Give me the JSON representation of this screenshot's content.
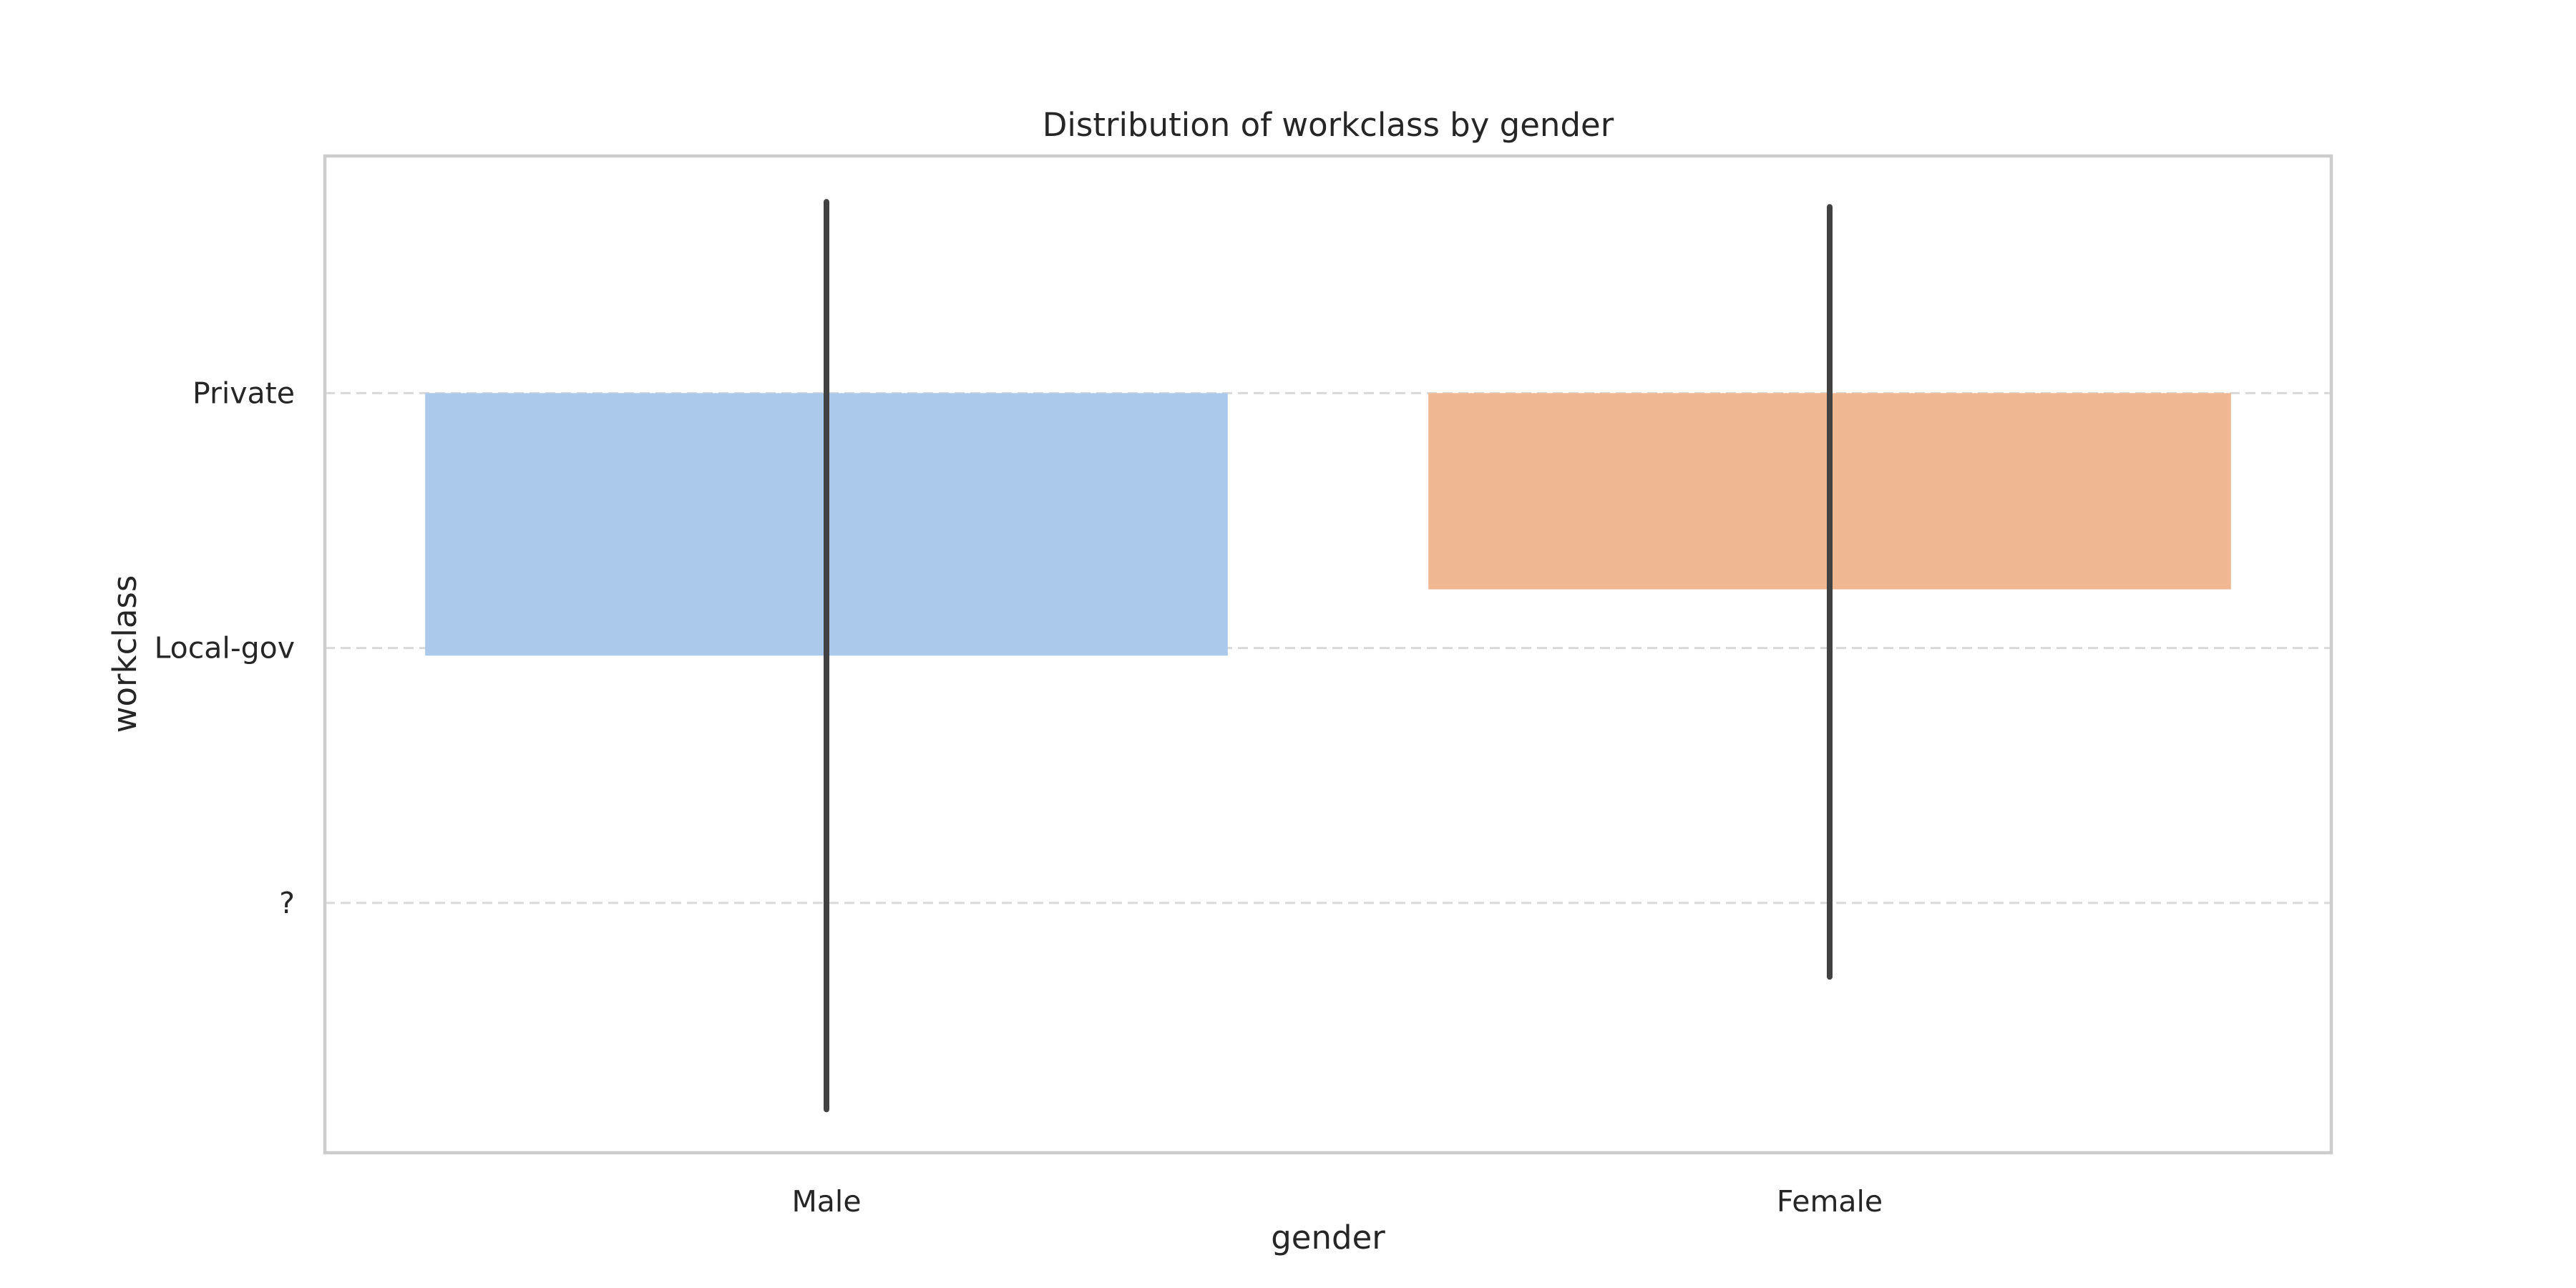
{
  "chart_data": {
    "type": "bar",
    "title": "Distribution of workclass by gender",
    "xlabel": "gender",
    "ylabel": "workclass",
    "categories": [
      "Male",
      "Female"
    ],
    "y_tick_labels": [
      "Private",
      "Local-gov",
      "?"
    ],
    "y_tick_values": [
      0,
      1,
      2
    ],
    "ylim": [
      -0.93,
      2.98
    ],
    "y_inverted": true,
    "grid": "y, dashed",
    "legend": "none",
    "values": [
      1.03,
      0.77
    ],
    "error_bars": [
      {
        "low": -0.75,
        "high": 2.81
      },
      {
        "low": -0.73,
        "high": 2.29
      }
    ],
    "colors": [
      "#abc9ea",
      "#efb792"
    ]
  }
}
